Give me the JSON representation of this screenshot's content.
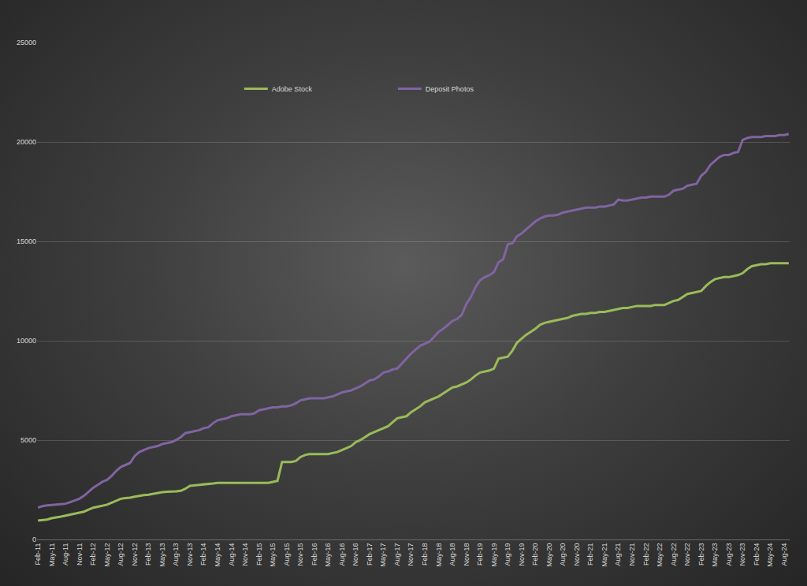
{
  "chart_data": {
    "type": "line",
    "categories": [
      "Feb-11",
      null,
      null,
      "May-11",
      null,
      null,
      "Aug-11",
      null,
      null,
      "Nov-11",
      null,
      null,
      "Feb-12",
      null,
      null,
      "May-12",
      null,
      null,
      "Aug-12",
      null,
      null,
      "Nov-12",
      null,
      null,
      "Feb-13",
      null,
      null,
      "May-13",
      null,
      null,
      "Aug-13",
      null,
      null,
      "Nov-13",
      null,
      null,
      "Feb-14",
      null,
      null,
      "May-14",
      null,
      null,
      "Aug-14",
      null,
      null,
      "Nov-14",
      null,
      null,
      "Feb-15",
      null,
      null,
      "May-15",
      null,
      null,
      "Aug-15",
      null,
      null,
      "Nov-15",
      null,
      null,
      "Feb-16",
      null,
      null,
      "May-16",
      null,
      null,
      "Aug-16",
      null,
      null,
      "Nov-16",
      null,
      null,
      "Feb-17",
      null,
      null,
      "May-17",
      null,
      null,
      "Aug-17",
      null,
      null,
      "Nov-17",
      null,
      null,
      "Feb-18",
      null,
      null,
      "May-18",
      null,
      null,
      "Aug-18",
      null,
      null,
      "Nov-18",
      null,
      null,
      "Feb-19",
      null,
      null,
      "May-19",
      null,
      null,
      "Aug-19",
      null,
      null,
      "Nov-19",
      null,
      null,
      "Feb-20",
      null,
      null,
      "May-20",
      null,
      null,
      "Aug-20",
      null,
      null,
      "Nov-20",
      null,
      null,
      "Feb-21",
      null,
      null,
      "May-21",
      null,
      null,
      "Aug-21",
      null,
      null,
      "Nov-21",
      null,
      null,
      "Feb-22",
      null,
      null,
      "May-22",
      null,
      null,
      "Aug-22",
      null,
      null,
      "Nov-22",
      null,
      null,
      "Feb-23",
      null,
      null,
      "May-23",
      null,
      null,
      "Aug-23",
      null,
      null,
      "Nov-23",
      null,
      null,
      "Feb-24",
      null,
      null,
      "May-24",
      null,
      null,
      "Aug-24",
      null
    ],
    "series": [
      {
        "name": "Adobe Stock",
        "color": "#9bbb59",
        "values": [
          950,
          980,
          1000,
          1070,
          1100,
          1150,
          1200,
          1250,
          1280,
          1330,
          1400,
          1500,
          1600,
          1650,
          1700,
          1750,
          1850,
          1950,
          2050,
          2080,
          2100,
          2150,
          2200,
          2230,
          2250,
          2300,
          2350,
          2380,
          2400,
          2400,
          2420,
          2450,
          2550,
          2700,
          2720,
          2750,
          2780,
          2800,
          2820,
          2850,
          2850,
          2850,
          2850,
          2850,
          2850,
          2850,
          2850,
          2850,
          2850,
          2850,
          2850,
          2900,
          2950,
          3900,
          3900,
          3900,
          3950,
          4150,
          4250,
          4300,
          4300,
          4300,
          4300,
          4300,
          4350,
          4400,
          4500,
          4600,
          4700,
          4900,
          5000,
          5150,
          5300,
          5400,
          5500,
          5600,
          5700,
          5900,
          6100,
          6150,
          6200,
          6400,
          6550,
          6700,
          6900,
          7000,
          7100,
          7200,
          7350,
          7500,
          7650,
          7700,
          7800,
          7900,
          8050,
          8250,
          8400,
          8450,
          8500,
          8600,
          9100,
          9150,
          9200,
          9500,
          9900,
          10100,
          10300,
          10450,
          10600,
          10800,
          10900,
          10950,
          11000,
          11050,
          11100,
          11150,
          11250,
          11300,
          11350,
          11350,
          11400,
          11400,
          11450,
          11450,
          11500,
          11550,
          11600,
          11650,
          11650,
          11700,
          11750,
          11750,
          11750,
          11750,
          11800,
          11800,
          11800,
          11900,
          12000,
          12050,
          12200,
          12350,
          12400,
          12450,
          12500,
          12750,
          12950,
          13100,
          13150,
          13200,
          13200,
          13250,
          13300,
          13400,
          13600,
          13750,
          13800,
          13850,
          13850,
          13900,
          13900,
          13900,
          13900,
          13900
        ]
      },
      {
        "name": "Deposit Photos",
        "color": "#8064a2",
        "values": [
          1600,
          1680,
          1720,
          1750,
          1760,
          1780,
          1800,
          1880,
          1950,
          2050,
          2200,
          2400,
          2600,
          2750,
          2900,
          3000,
          3200,
          3450,
          3650,
          3750,
          3850,
          4200,
          4400,
          4500,
          4600,
          4650,
          4700,
          4800,
          4850,
          4900,
          5000,
          5150,
          5350,
          5400,
          5450,
          5500,
          5600,
          5650,
          5850,
          6000,
          6050,
          6100,
          6200,
          6250,
          6300,
          6300,
          6300,
          6350,
          6500,
          6550,
          6600,
          6650,
          6650,
          6700,
          6700,
          6750,
          6850,
          7000,
          7050,
          7100,
          7100,
          7100,
          7100,
          7150,
          7200,
          7300,
          7400,
          7450,
          7500,
          7600,
          7700,
          7850,
          8000,
          8050,
          8200,
          8400,
          8450,
          8550,
          8600,
          8850,
          9100,
          9350,
          9550,
          9750,
          9850,
          9950,
          10200,
          10450,
          10600,
          10800,
          11000,
          11100,
          11300,
          11850,
          12200,
          12700,
          13050,
          13200,
          13300,
          13450,
          13950,
          14100,
          14850,
          14900,
          15250,
          15400,
          15600,
          15800,
          16000,
          16150,
          16250,
          16300,
          16300,
          16350,
          16450,
          16500,
          16550,
          16600,
          16650,
          16700,
          16700,
          16700,
          16750,
          16750,
          16800,
          16850,
          17100,
          17050,
          17050,
          17100,
          17150,
          17200,
          17200,
          17250,
          17250,
          17250,
          17250,
          17350,
          17550,
          17600,
          17650,
          17800,
          17850,
          17900,
          18300,
          18500,
          18850,
          19050,
          19250,
          19350,
          19350,
          19450,
          19500,
          20100,
          20200,
          20250,
          20250,
          20250,
          20300,
          20300,
          20300,
          20350,
          20350,
          20400
        ]
      }
    ],
    "ylim": [
      0,
      25000
    ],
    "yticks": [
      0,
      5000,
      10000,
      15000,
      20000,
      25000
    ],
    "grid": true,
    "legend": "top"
  }
}
